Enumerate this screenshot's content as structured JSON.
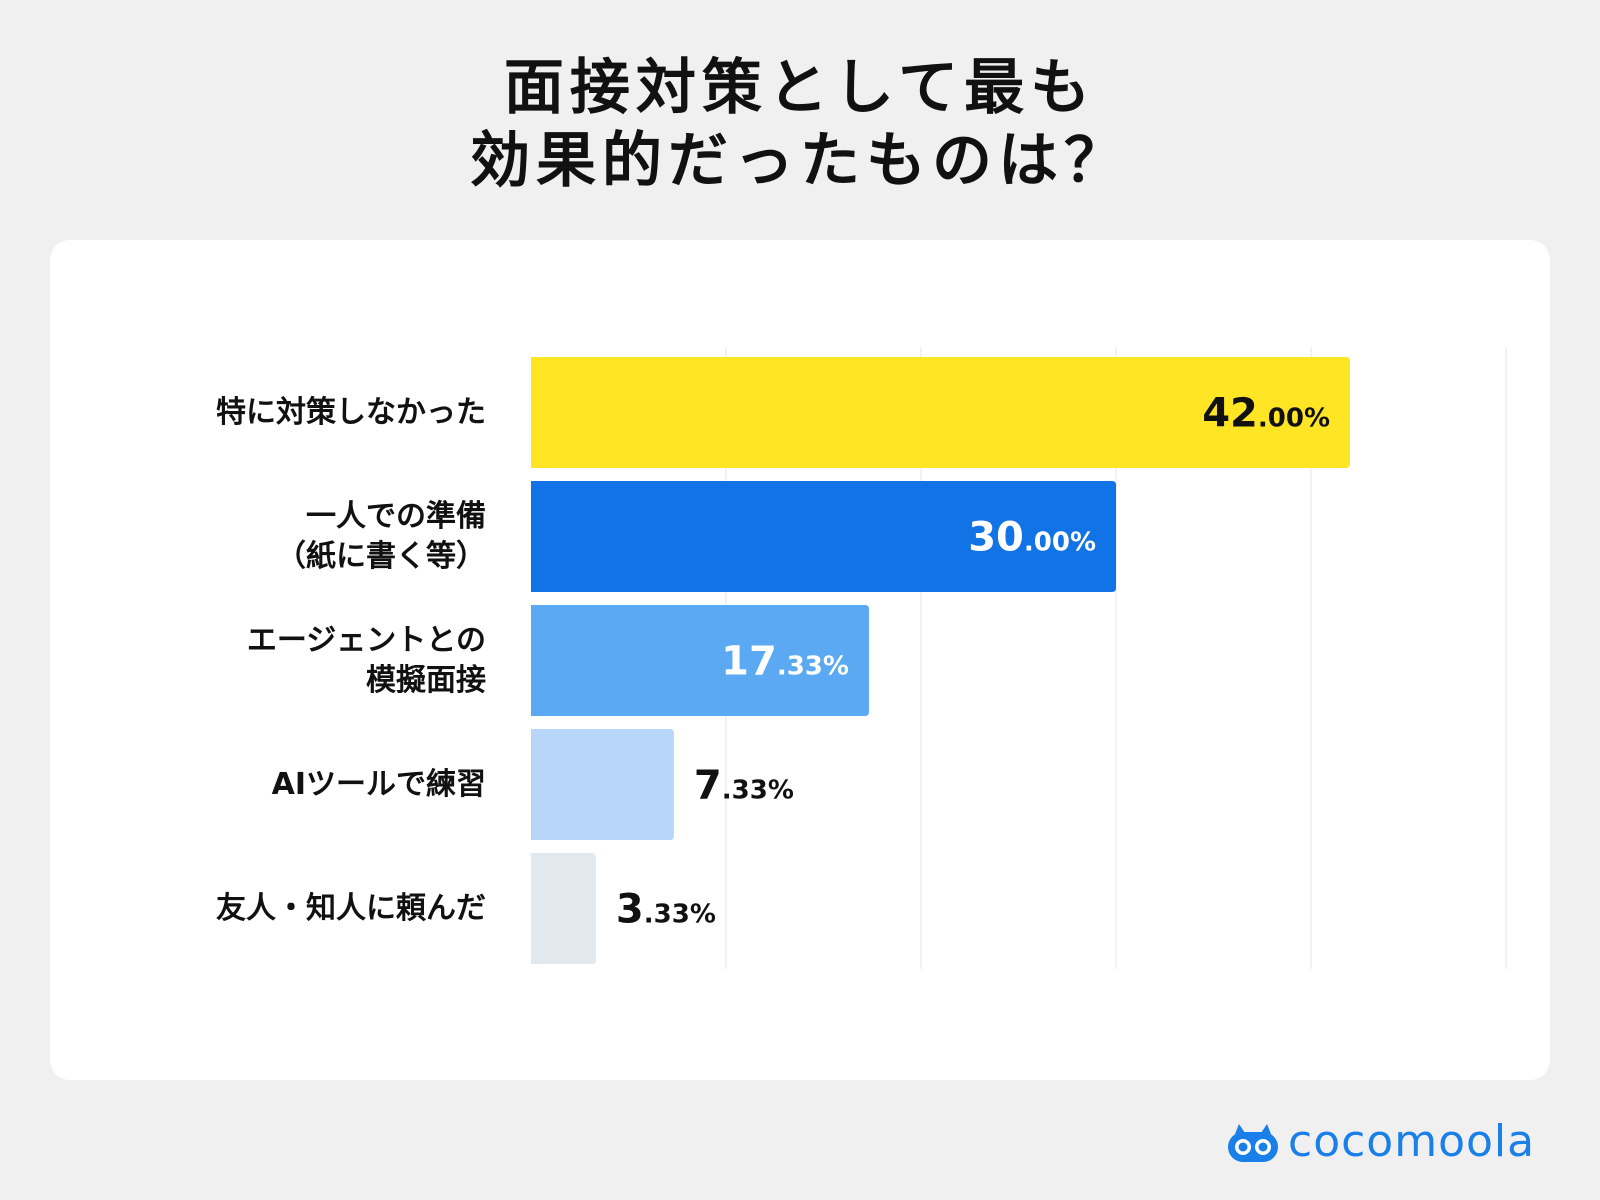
{
  "title": {
    "line1": "面接対策として最も",
    "line2": "効果的だったものは？"
  },
  "brand": {
    "name": "cocomoola",
    "icon": "cocomoola-logo-icon",
    "color": "#1a7fe8"
  },
  "chart_data": {
    "type": "bar",
    "orientation": "horizontal",
    "categories": [
      "特に対策しなかった",
      "一人での準備\n（紙に書く等）",
      "エージェントとの\n模擬面接",
      "AIツールで練習",
      "友人・知人に頼んだ"
    ],
    "values": [
      42.0,
      30.0,
      17.33,
      7.33,
      3.33
    ],
    "labels": [
      {
        "main": "42",
        "decimal": ".00%"
      },
      {
        "main": "30",
        "decimal": ".00%"
      },
      {
        "main": "17",
        "decimal": ".33%"
      },
      {
        "main": "7",
        "decimal": ".33%"
      },
      {
        "main": "3",
        "decimal": ".33%"
      }
    ],
    "colors": [
      "#ffe524",
      "#1273e6",
      "#5aa9f2",
      "#b8d7f8",
      "#e3e7ee"
    ],
    "label_colors": [
      "#111111",
      "#ffffff",
      "#ffffff",
      "#111111",
      "#111111"
    ],
    "label_inside": [
      true,
      true,
      true,
      false,
      false
    ],
    "xlim": [
      0,
      50
    ],
    "grid": true,
    "grid_step": 10,
    "legend": "none"
  }
}
